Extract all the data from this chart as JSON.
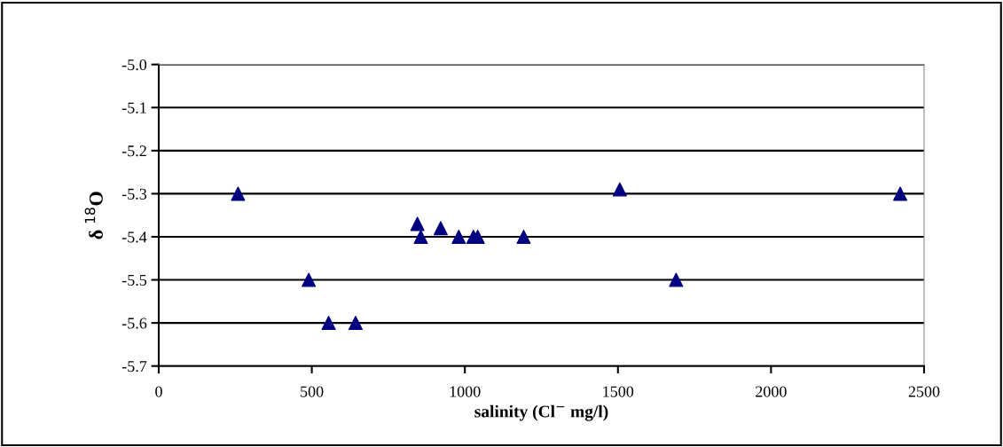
{
  "chart_data": {
    "type": "scatter",
    "xlabel": "salinity (Cl$^{−}$ mg/l)",
    "ylabel": "δ $^{18}$O",
    "x": [
      259,
      490,
      555,
      643,
      845,
      856,
      921,
      980,
      1028,
      1042,
      1192,
      1506,
      1690,
      2422
    ],
    "values": [
      -5.3,
      -5.5,
      -5.6,
      -5.6,
      -5.37,
      -5.4,
      -5.38,
      -5.4,
      -5.4,
      -5.4,
      -5.4,
      -5.29,
      -5.5,
      -5.3
    ],
    "color": "#000080",
    "marker": "triangle",
    "xlim": [
      0,
      2500
    ],
    "xticks": [
      0,
      500,
      1000,
      1500,
      2000,
      2500
    ],
    "ylim": [
      -5.7,
      -5.0
    ],
    "yticks": [
      {
        "value": -5.7,
        "label": "-5.7"
      },
      {
        "value": -5.6,
        "label": "-5.6"
      },
      {
        "value": -5.5,
        "label": "-5.5"
      },
      {
        "value": -5.4,
        "label": "-5.4"
      },
      {
        "value": -5.3,
        "label": "-5.3"
      },
      {
        "value": -5.2,
        "label": "-5.2"
      },
      {
        "value": -5.1,
        "label": "-5.1"
      },
      {
        "value": -5.0,
        "label": "-5.0"
      }
    ],
    "grid": "y"
  }
}
